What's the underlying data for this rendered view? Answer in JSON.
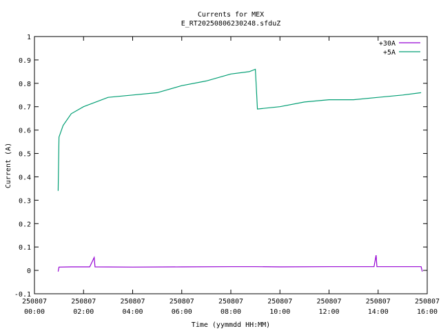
{
  "chart_data": {
    "type": "line",
    "title": "Currents for MEX",
    "subtitle": "E_RT20250806230248.sfduZ",
    "xlabel": "Time (yymmdd HH:MM)",
    "ylabel": "Current (A)",
    "xlim": [
      "250807 00:00",
      "250807 16:00"
    ],
    "ylim": [
      -0.1,
      1
    ],
    "grid": false,
    "legend_position": "top-right",
    "y_ticks": [
      "-0.1",
      "0",
      "0.1",
      "0.2",
      "0.3",
      "0.4",
      "0.5",
      "0.6",
      "0.7",
      "0.8",
      "0.9",
      "1"
    ],
    "x_ticks": [
      {
        "date": "250807",
        "time": "00:00"
      },
      {
        "date": "250807",
        "time": "02:00"
      },
      {
        "date": "250807",
        "time": "04:00"
      },
      {
        "date": "250807",
        "time": "06:00"
      },
      {
        "date": "250807",
        "time": "08:00"
      },
      {
        "date": "250807",
        "time": "10:00"
      },
      {
        "date": "250807",
        "time": "12:00"
      },
      {
        "date": "250807",
        "time": "14:00"
      },
      {
        "date": "250807",
        "time": "16:00"
      }
    ],
    "series": [
      {
        "name": "+30A",
        "color": "#9400d3",
        "points": [
          [
            "250807 00:58",
            -0.005
          ],
          [
            "250807 01:00",
            0.014
          ],
          [
            "250807 01:30",
            0.015
          ],
          [
            "250807 02:15",
            0.015
          ],
          [
            "250807 02:26",
            0.055
          ],
          [
            "250807 02:28",
            0.015
          ],
          [
            "250807 04:00",
            0.014
          ],
          [
            "250807 06:00",
            0.015
          ],
          [
            "250807 08:00",
            0.016
          ],
          [
            "250807 09:00",
            0.016
          ],
          [
            "250807 10:00",
            0.015
          ],
          [
            "250807 12:00",
            0.016
          ],
          [
            "250807 13:50",
            0.016
          ],
          [
            "250807 13:55",
            0.065
          ],
          [
            "250807 13:57",
            0.016
          ],
          [
            "250807 15:45",
            0.016
          ],
          [
            "250807 15:48",
            -0.005
          ]
        ]
      },
      {
        "name": "+5A",
        "color": "#009e73",
        "points": [
          [
            "250807 00:58",
            0.34
          ],
          [
            "250807 01:00",
            0.57
          ],
          [
            "250807 01:10",
            0.62
          ],
          [
            "250807 01:30",
            0.67
          ],
          [
            "250807 02:00",
            0.7
          ],
          [
            "250807 02:30",
            0.72
          ],
          [
            "250807 03:00",
            0.74
          ],
          [
            "250807 04:00",
            0.75
          ],
          [
            "250807 05:00",
            0.76
          ],
          [
            "250807 06:00",
            0.79
          ],
          [
            "250807 07:00",
            0.81
          ],
          [
            "250807 08:00",
            0.84
          ],
          [
            "250807 08:45",
            0.85
          ],
          [
            "250807 09:00",
            0.86
          ],
          [
            "250807 09:05",
            0.69
          ],
          [
            "250807 10:00",
            0.7
          ],
          [
            "250807 11:00",
            0.72
          ],
          [
            "250807 12:00",
            0.73
          ],
          [
            "250807 13:00",
            0.73
          ],
          [
            "250807 14:00",
            0.74
          ],
          [
            "250807 15:00",
            0.75
          ],
          [
            "250807 15:45",
            0.76
          ]
        ]
      }
    ]
  }
}
